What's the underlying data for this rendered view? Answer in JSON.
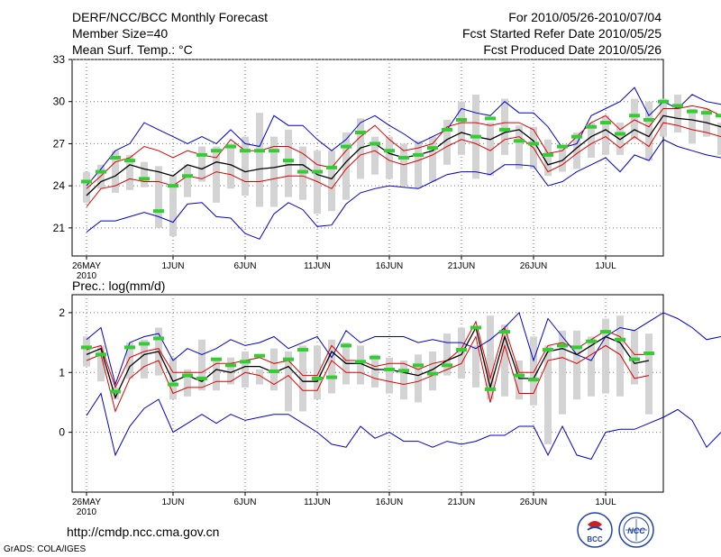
{
  "header": {
    "title": "DERF/NCC/BCC Monthly Forecast",
    "member_size": "Member Size=40",
    "variable": "Mean Surf. Temp.: °C",
    "fcst_period": "For 2010/05/26-2010/07/04",
    "start_date": "Fcst Started Refer Date 2010/05/25",
    "produced_date": "Fcst Produced Date 2010/05/26"
  },
  "footer": {
    "url": "http://cmdp.ncc.cma.gov.cn",
    "grads": "GrADS: COLA/IGES",
    "logo_left": "BCC",
    "logo_right": "NCC"
  },
  "colors": {
    "envelope": "#0000cc",
    "spread": "#dd0000",
    "mean": "#000000",
    "bar": "#d3d3d3",
    "marker": "#33cc33"
  },
  "chart_data": [
    {
      "type": "line",
      "title": "Mean Surf. Temp.: °C",
      "xlabel": "",
      "ylabel": "°C",
      "ylim": [
        19,
        33
      ],
      "yticks": [
        21,
        24,
        27,
        30,
        33
      ],
      "xlim": [
        -1,
        40
      ],
      "xtick_positions": [
        0,
        6,
        11,
        16,
        21,
        26,
        31,
        36
      ],
      "xtick_labels": [
        "26MAY",
        "1JUN",
        "6JUN",
        "11JUN",
        "16JUN",
        "21JUN",
        "26JUN",
        "1JUL"
      ],
      "year_label": "2010",
      "series": [
        {
          "name": "max",
          "role": "envelope",
          "values": [
            20.7,
            21.5,
            21.5,
            21.8,
            22.1,
            21.8,
            21.4,
            22.7,
            22.8,
            21.8,
            21.7,
            20.6,
            20.2,
            22.0,
            22.8,
            22.3,
            21.1,
            21.2,
            22.7,
            23.5,
            23.8,
            24.0,
            23.9,
            23.8,
            24.3,
            24.8,
            25.0,
            25.0,
            24.8,
            25.5,
            25.5,
            25.4,
            24.0,
            24.3,
            25.0,
            25.5,
            26.0,
            25.0,
            26.2,
            25.8,
            27.3,
            26.8,
            26.5,
            26.2,
            26.0,
            26.0
          ]
        },
        {
          "name": "env_top",
          "role": "envelope",
          "values": [
            24.0,
            25.2,
            26.5,
            27.0,
            28.5,
            28.0,
            27.5,
            27.0,
            27.5,
            27.0,
            28.0,
            27.0,
            26.8,
            29.0,
            28.3,
            28.3,
            27.3,
            26.5,
            27.3,
            28.5,
            29.0,
            28.3,
            27.7,
            27.0,
            27.5,
            28.0,
            29.5,
            29.2,
            29.0,
            30.0,
            29.2,
            29.2,
            28.2,
            26.7,
            27.0,
            29.0,
            29.5,
            30.0,
            31.0,
            29.0,
            30.0,
            29.5,
            30.5,
            30.0,
            29.8,
            29.0
          ]
        },
        {
          "name": "upper",
          "role": "spread",
          "values": [
            23.8,
            24.7,
            25.7,
            26.0,
            26.8,
            26.5,
            26.0,
            26.5,
            26.2,
            26.0,
            27.3,
            26.5,
            26.5,
            26.8,
            26.8,
            26.3,
            25.5,
            25.3,
            26.5,
            27.5,
            28.3,
            27.3,
            26.5,
            26.7,
            27.0,
            28.2,
            28.5,
            28.5,
            28.3,
            28.5,
            28.5,
            28.0,
            26.3,
            26.5,
            27.5,
            28.5,
            29.0,
            28.0,
            28.7,
            28.2,
            29.5,
            29.5,
            29.7,
            29.5,
            29.0,
            28.7
          ]
        },
        {
          "name": "mean",
          "role": "mean",
          "values": [
            23.3,
            24.3,
            24.7,
            25.5,
            25.2,
            25.0,
            24.7,
            25.5,
            25.2,
            25.7,
            25.5,
            25.0,
            25.2,
            25.3,
            25.5,
            25.5,
            24.8,
            24.5,
            25.7,
            26.7,
            27.0,
            26.3,
            26.0,
            26.2,
            26.5,
            27.3,
            27.8,
            27.5,
            27.3,
            27.8,
            28.0,
            27.2,
            25.5,
            25.8,
            26.7,
            27.5,
            28.0,
            27.3,
            28.0,
            27.5,
            29.0,
            28.8,
            28.7,
            28.5,
            28.2,
            27.7
          ]
        },
        {
          "name": "lower",
          "role": "spread",
          "values": [
            22.5,
            23.8,
            24.0,
            24.5,
            24.3,
            24.3,
            24.0,
            24.7,
            24.5,
            25.0,
            24.8,
            24.3,
            24.3,
            24.5,
            24.7,
            24.7,
            24.3,
            23.8,
            25.2,
            26.2,
            26.5,
            25.8,
            25.5,
            25.8,
            26.2,
            26.8,
            27.3,
            27.0,
            26.5,
            27.3,
            27.5,
            26.7,
            25.0,
            25.5,
            26.3,
            27.0,
            27.5,
            26.7,
            27.5,
            26.8,
            28.5,
            28.3,
            28.0,
            27.8,
            27.5,
            27.2
          ]
        },
        {
          "name": "marker",
          "role": "marker",
          "values": [
            24.3,
            25.0,
            26.0,
            25.8,
            24.5,
            22.2,
            24.0,
            24.7,
            26.2,
            26.5,
            26.8,
            26.5,
            26.5,
            26.5,
            25.8,
            25.0,
            25.0,
            25.3,
            26.8,
            27.8,
            27.0,
            26.5,
            26.0,
            26.2,
            26.7,
            28.0,
            28.7,
            27.5,
            28.8,
            28.0,
            27.2,
            27.0,
            26.2,
            26.8,
            27.5,
            28.2,
            28.5,
            27.7,
            29.0,
            28.7,
            30.0,
            29.7,
            29.3,
            29.2,
            29.0,
            28.3
          ]
        },
        {
          "name": "bar_low",
          "role": "bar",
          "values": [
            22.8,
            23.8,
            23.5,
            23.7,
            23.9,
            21.0,
            20.4,
            23.2,
            24.3,
            22.8,
            23.8,
            23.3,
            22.5,
            22.5,
            23.2,
            23.0,
            22.0,
            22.2,
            23.0,
            24.5,
            24.8,
            24.5,
            24.0,
            23.8,
            24.3,
            25.5,
            26.2,
            24.5,
            24.7,
            26.2,
            25.2,
            25.2,
            24.7,
            25.0,
            25.2,
            26.0,
            26.2,
            26.2,
            27.3,
            25.8,
            27.5,
            27.8,
            27.0,
            27.5,
            26.2,
            26.2
          ]
        },
        {
          "name": "bar_high",
          "role": "bar",
          "values": [
            25.0,
            25.5,
            26.5,
            26.2,
            25.7,
            25.4,
            24.8,
            25.5,
            26.8,
            26.8,
            27.0,
            27.5,
            29.2,
            27.5,
            28.0,
            26.8,
            26.5,
            26.5,
            27.8,
            28.8,
            27.5,
            27.5,
            27.0,
            27.2,
            27.5,
            28.7,
            30.0,
            30.5,
            28.5,
            30.2,
            28.3,
            28.2,
            27.3,
            26.8,
            27.8,
            28.5,
            29.0,
            28.5,
            30.2,
            30.0,
            30.2,
            30.5,
            29.5,
            29.5,
            28.5,
            28.7
          ]
        }
      ]
    },
    {
      "type": "line",
      "title": "Prec.: log(mm/d)",
      "xlabel": "",
      "ylabel": "log(mm/d)",
      "ylim": [
        -1,
        2.3
      ],
      "yticks": [
        0,
        1,
        2
      ],
      "xlim": [
        -1,
        40
      ],
      "xtick_positions": [
        0,
        6,
        11,
        16,
        21,
        26,
        31,
        36
      ],
      "xtick_labels": [
        "26MAY",
        "1JUN",
        "6JUN",
        "11JUN",
        "16JUN",
        "21JUN",
        "26JUN",
        "1JUL"
      ],
      "year_label": "2010",
      "series": [
        {
          "name": "min",
          "role": "envelope",
          "values": [
            0.28,
            0.65,
            -0.38,
            0.1,
            0.4,
            0.55,
            0.0,
            0.15,
            0.3,
            0.15,
            0.3,
            0.2,
            0.25,
            0.3,
            0.3,
            0.15,
            0.0,
            -0.2,
            -0.25,
            0.1,
            -0.1,
            0.0,
            -0.15,
            -0.15,
            -0.25,
            -0.15,
            -0.2,
            -0.15,
            -0.05,
            -0.05,
            0.1,
            0.1,
            -0.38,
            0.1,
            -0.38,
            -0.45,
            0.0,
            0.05,
            0.05,
            0.15,
            0.25,
            0.38,
            0.2,
            -0.25,
            0.0
          ]
        },
        {
          "name": "env_top",
          "role": "envelope",
          "values": [
            1.55,
            1.75,
            0.8,
            1.5,
            1.6,
            1.65,
            1.2,
            1.4,
            1.3,
            1.4,
            1.55,
            1.45,
            1.5,
            1.6,
            1.4,
            1.5,
            1.6,
            1.25,
            1.7,
            1.5,
            1.6,
            1.6,
            1.6,
            1.5,
            1.55,
            1.5,
            1.5,
            1.4,
            1.55,
            1.75,
            2.0,
            1.2,
            1.9,
            1.6,
            1.3,
            1.2,
            1.6,
            1.75,
            1.7,
            1.85,
            2.0,
            1.9,
            1.75,
            1.55,
            1.6
          ]
        },
        {
          "name": "upper",
          "role": "spread",
          "values": [
            1.38,
            1.45,
            0.75,
            1.25,
            1.35,
            1.4,
            1.0,
            1.0,
            1.0,
            1.15,
            1.15,
            1.2,
            1.25,
            1.15,
            1.2,
            0.95,
            0.95,
            1.45,
            1.2,
            1.2,
            1.1,
            1.15,
            1.15,
            1.05,
            1.15,
            1.2,
            1.4,
            1.85,
            0.9,
            1.75,
            1.0,
            1.0,
            1.45,
            1.5,
            1.4,
            1.55,
            1.7,
            1.6,
            1.3,
            1.3
          ]
        },
        {
          "name": "mean",
          "role": "mean",
          "values": [
            1.3,
            1.4,
            0.58,
            1.1,
            1.3,
            1.35,
            0.85,
            0.95,
            0.85,
            1.05,
            1.0,
            1.1,
            1.1,
            1.0,
            1.1,
            0.85,
            0.85,
            1.35,
            1.15,
            1.15,
            1.05,
            1.05,
            1.0,
            0.95,
            1.05,
            1.2,
            1.3,
            1.75,
            0.75,
            1.6,
            0.9,
            0.9,
            1.35,
            1.4,
            1.3,
            1.45,
            1.6,
            1.5,
            1.15,
            1.2
          ]
        },
        {
          "name": "lower",
          "role": "spread",
          "values": [
            1.2,
            1.3,
            0.35,
            0.9,
            1.1,
            1.2,
            0.65,
            0.75,
            0.75,
            0.85,
            0.85,
            1.0,
            0.95,
            0.8,
            0.95,
            0.7,
            0.7,
            1.2,
            1.0,
            1.0,
            0.9,
            0.85,
            0.8,
            0.85,
            0.95,
            1.05,
            1.15,
            1.6,
            0.5,
            1.45,
            0.65,
            0.65,
            1.2,
            1.25,
            1.15,
            1.3,
            1.45,
            1.3,
            0.9,
            0.95
          ]
        },
        {
          "name": "marker",
          "role": "marker",
          "values": [
            1.42,
            1.3,
            0.68,
            1.42,
            1.48,
            1.57,
            0.8,
            0.95,
            0.9,
            1.22,
            1.12,
            1.18,
            1.28,
            1.02,
            1.22,
            1.38,
            0.9,
            0.92,
            1.45,
            1.18,
            1.25,
            1.05,
            1.03,
            1.12,
            0.98,
            1.12,
            1.38,
            1.75,
            0.72,
            1.68,
            0.95,
            0.88,
            1.38,
            1.45,
            1.42,
            1.52,
            1.68,
            1.55,
            1.22,
            1.32
          ]
        },
        {
          "name": "bar_low",
          "role": "bar",
          "values": [
            1.1,
            0.85,
            0.55,
            0.9,
            0.9,
            0.95,
            0.55,
            0.6,
            0.7,
            0.7,
            0.8,
            0.75,
            0.8,
            0.7,
            0.35,
            0.35,
            0.55,
            0.65,
            0.8,
            0.8,
            0.75,
            0.65,
            0.55,
            0.5,
            0.7,
            0.95,
            0.9,
            0.75,
            0.55,
            0.6,
            0.55,
            0.45,
            -0.2,
            0.3,
            0.55,
            0.6,
            0.65,
            0.6,
            0.8,
            0.3
          ]
        },
        {
          "name": "bar_high",
          "role": "bar",
          "values": [
            1.6,
            1.45,
            0.75,
            1.5,
            1.55,
            1.75,
            1.25,
            1.05,
            1.55,
            1.25,
            1.25,
            1.35,
            1.05,
            1.4,
            1.35,
            1.45,
            1.45,
            1.55,
            1.5,
            1.45,
            1.3,
            1.25,
            1.2,
            1.3,
            1.35,
            1.65,
            1.75,
            1.45,
            1.95,
            1.8,
            1.2,
            1.6,
            1.45,
            1.7,
            1.7,
            1.6,
            1.9,
            1.95,
            1.7,
            1.65
          ]
        }
      ]
    }
  ]
}
